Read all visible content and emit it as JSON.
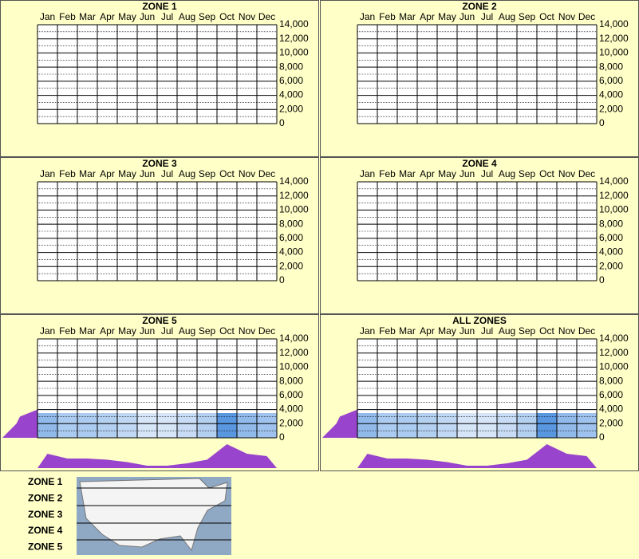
{
  "chart_data": [
    {
      "type": "heatmap",
      "title": "ZONE 1",
      "categories": [
        "Jan",
        "Feb",
        "Mar",
        "Apr",
        "May",
        "Jun",
        "Jul",
        "Aug",
        "Sep",
        "Oct",
        "Nov",
        "Dec"
      ],
      "ylim": [
        0,
        14000
      ],
      "yticks": [
        0,
        {
          "value": 2000,
          "label": "2,000"
        },
        {
          "value": 4000,
          "label": "4,000"
        },
        {
          "value": 6000,
          "label": "6,000"
        },
        {
          "value": 8000,
          "label": "8,000"
        },
        {
          "value": 10000,
          "label": "10,000"
        },
        {
          "value": 12000,
          "label": "12,000"
        },
        {
          "value": 14000,
          "label": "14,000"
        }
      ],
      "grid": true
    },
    {
      "type": "heatmap",
      "title": "ZONE 2",
      "categories": [
        "Jan",
        "Feb",
        "Mar",
        "Apr",
        "May",
        "Jun",
        "Jul",
        "Aug",
        "Sep",
        "Oct",
        "Nov",
        "Dec"
      ],
      "ylim": [
        0,
        14000
      ],
      "yticks": [
        0,
        {
          "value": 2000,
          "label": "2,000"
        },
        {
          "value": 4000,
          "label": "4,000"
        },
        {
          "value": 6000,
          "label": "6,000"
        },
        {
          "value": 8000,
          "label": "8,000"
        },
        {
          "value": 10000,
          "label": "10,000"
        },
        {
          "value": 12000,
          "label": "12,000"
        },
        {
          "value": 14000,
          "label": "14,000"
        }
      ],
      "grid": true
    },
    {
      "type": "heatmap",
      "title": "ZONE 3",
      "categories": [
        "Jan",
        "Feb",
        "Mar",
        "Apr",
        "May",
        "Jun",
        "Jul",
        "Aug",
        "Sep",
        "Oct",
        "Nov",
        "Dec"
      ],
      "ylim": [
        0,
        14000
      ],
      "yticks": [
        0,
        {
          "value": 2000,
          "label": "2,000"
        },
        {
          "value": 4000,
          "label": "4,000"
        },
        {
          "value": 6000,
          "label": "6,000"
        },
        {
          "value": 8000,
          "label": "8,000"
        },
        {
          "value": 10000,
          "label": "10,000"
        },
        {
          "value": 12000,
          "label": "12,000"
        },
        {
          "value": 14000,
          "label": "14,000"
        }
      ],
      "grid": true
    },
    {
      "type": "heatmap",
      "title": "ZONE 4",
      "categories": [
        "Jan",
        "Feb",
        "Mar",
        "Apr",
        "May",
        "Jun",
        "Jul",
        "Aug",
        "Sep",
        "Oct",
        "Nov",
        "Dec"
      ],
      "ylim": [
        0,
        14000
      ],
      "yticks": [
        0,
        {
          "value": 2000,
          "label": "2,000"
        },
        {
          "value": 4000,
          "label": "4,000"
        },
        {
          "value": 6000,
          "label": "6,000"
        },
        {
          "value": 8000,
          "label": "8,000"
        },
        {
          "value": 10000,
          "label": "10,000"
        },
        {
          "value": 12000,
          "label": "12,000"
        },
        {
          "value": 14000,
          "label": "14,000"
        }
      ],
      "grid": true
    },
    {
      "type": "heatmap",
      "title": "ZONE 5",
      "categories": [
        "Jan",
        "Feb",
        "Mar",
        "Apr",
        "May",
        "Jun",
        "Jul",
        "Aug",
        "Sep",
        "Oct",
        "Nov",
        "Dec"
      ],
      "ylim": [
        0,
        14000
      ],
      "yticks": [
        0,
        {
          "value": 2000,
          "label": "2,000"
        },
        {
          "value": 4000,
          "label": "4,000"
        },
        {
          "value": 6000,
          "label": "6,000"
        },
        {
          "value": 8000,
          "label": "8,000"
        },
        {
          "value": 10000,
          "label": "10,000"
        },
        {
          "value": 12000,
          "label": "12,000"
        },
        {
          "value": 14000,
          "label": "14,000"
        }
      ],
      "grid": true,
      "values": [
        6,
        4,
        4,
        3.5,
        2.5,
        1,
        1,
        2,
        3.5,
        10,
        6,
        5
      ],
      "color": "#9944cc",
      "elevations": [
        0,
        1000,
        2000,
        3000,
        4000
      ],
      "elevation_values": [
        10,
        8,
        6,
        5,
        0
      ]
    },
    {
      "type": "heatmap",
      "title": "ALL ZONES",
      "categories": [
        "Jan",
        "Feb",
        "Mar",
        "Apr",
        "May",
        "Jun",
        "Jul",
        "Aug",
        "Sep",
        "Oct",
        "Nov",
        "Dec"
      ],
      "ylim": [
        0,
        14000
      ],
      "yticks": [
        0,
        {
          "value": 2000,
          "label": "2,000"
        },
        {
          "value": 4000,
          "label": "4,000"
        },
        {
          "value": 6000,
          "label": "6,000"
        },
        {
          "value": 8000,
          "label": "8,000"
        },
        {
          "value": 10000,
          "label": "10,000"
        },
        {
          "value": 12000,
          "label": "12,000"
        },
        {
          "value": 14000,
          "label": "14,000"
        }
      ],
      "grid": true,
      "values": [
        6,
        4,
        4,
        3.5,
        2.5,
        1,
        1,
        2,
        3.5,
        10,
        6,
        5
      ],
      "color": "#9944cc",
      "elevations": [
        0,
        1000,
        2000,
        3000,
        4000
      ],
      "elevation_values": [
        10,
        8,
        6,
        5,
        0
      ]
    }
  ],
  "legend": {
    "zones": [
      "ZONE 1",
      "ZONE 2",
      "ZONE 3",
      "ZONE 4",
      "ZONE 5"
    ]
  }
}
